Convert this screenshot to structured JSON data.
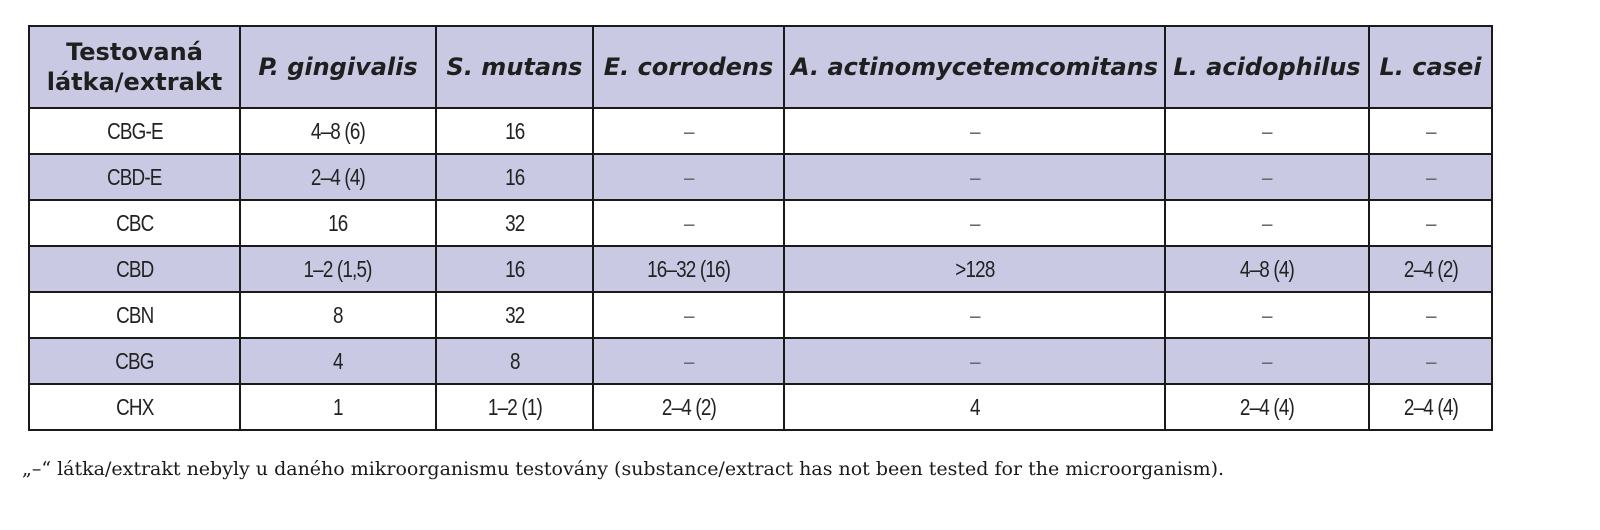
{
  "table": {
    "headers": [
      {
        "label": "Testovaná\nlátka/extrakt",
        "italic": false
      },
      {
        "label": "P. gingivalis",
        "italic": true
      },
      {
        "label": "S. mutans",
        "italic": true
      },
      {
        "label": "E. corrodens",
        "italic": true
      },
      {
        "label": "A. actinomycetemcomitans",
        "italic": true
      },
      {
        "label": "L. acidophilus",
        "italic": true
      },
      {
        "label": "L. casei",
        "italic": true
      }
    ],
    "rows": [
      {
        "cells": [
          "CBG-E",
          "4–8 (6)",
          "16",
          "–",
          "–",
          "–",
          "–"
        ]
      },
      {
        "cells": [
          "CBD-E",
          "2–4 (4)",
          "16",
          "–",
          "–",
          "–",
          "–"
        ]
      },
      {
        "cells": [
          "CBC",
          "16",
          "32",
          "–",
          "–",
          "–",
          "–"
        ]
      },
      {
        "cells": [
          "CBD",
          "1–2 (1,5)",
          "16",
          "16–32 (16)",
          ">128",
          "4–8 (4)",
          "2–4 (2)"
        ]
      },
      {
        "cells": [
          "CBN",
          "8",
          "32",
          "–",
          "–",
          "–",
          "–"
        ]
      },
      {
        "cells": [
          "CBG",
          "4",
          "8",
          "–",
          "–",
          "–",
          "–"
        ]
      },
      {
        "cells": [
          "CHX",
          "1",
          "1–2 (1)",
          "2–4 (2)",
          "4",
          "2–4 (4)",
          "2–4 (4)"
        ]
      }
    ]
  },
  "footnote": "„–“ látka/extrakt nebyly u daného mikroorganismu testovány (substance/extract has not been tested for the microorganism).",
  "colors": {
    "header_bg": "#c9c9e3",
    "shaded_row_bg": "#c9c9e3",
    "border": "#1a1a1a"
  }
}
